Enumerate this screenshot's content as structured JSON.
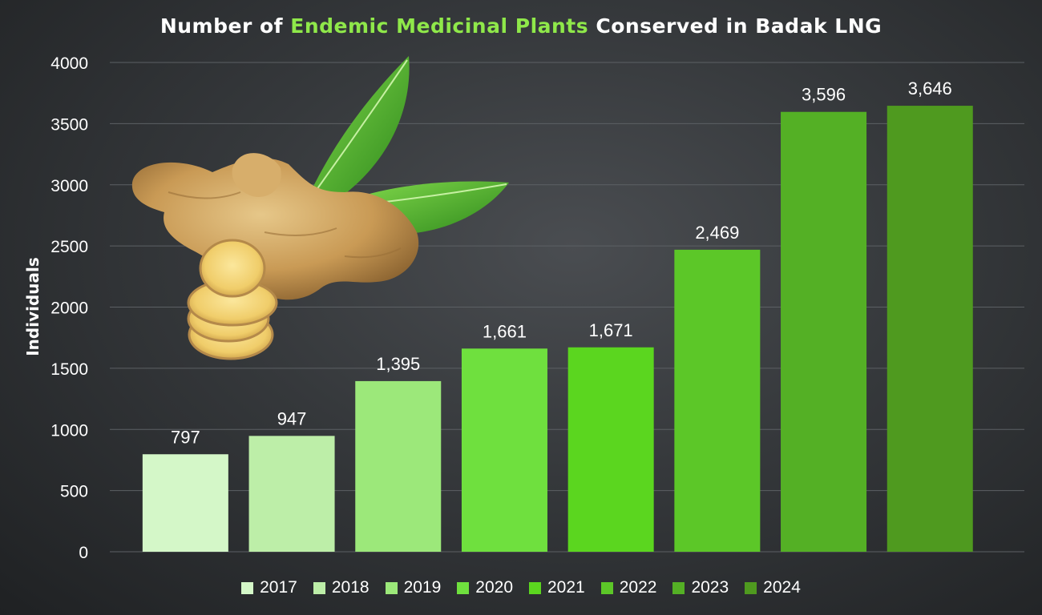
{
  "chart_data": {
    "type": "bar",
    "title_parts": [
      "Number of ",
      "Endemic Medicinal Plants",
      " Conserved in Badak LNG"
    ],
    "ylabel": "Individuals",
    "xlabel": "",
    "categories": [
      "2017",
      "2018",
      "2019",
      "2020",
      "2021",
      "2022",
      "2023",
      "2024"
    ],
    "values": [
      797,
      947,
      1395,
      1661,
      1671,
      2469,
      3596,
      3646
    ],
    "value_labels": [
      "797",
      "947",
      "1,395",
      "1,661",
      "1,671",
      "2,469",
      "3,596",
      "3,646"
    ],
    "ylim": [
      0,
      4000
    ],
    "yticks": [
      0,
      500,
      1000,
      1500,
      2000,
      2500,
      3000,
      3500,
      4000
    ],
    "grid": true,
    "legend_placement": "bottom",
    "colors": [
      "#d4f7c8",
      "#bdeea8",
      "#9ce87a",
      "#6fe03e",
      "#5bd61f",
      "#5cc728",
      "#54b025",
      "#4f9a1f"
    ],
    "title_highlight_color": "#8fe84a"
  },
  "illustration": {
    "name": "ginger-root-with-leaves-image"
  }
}
